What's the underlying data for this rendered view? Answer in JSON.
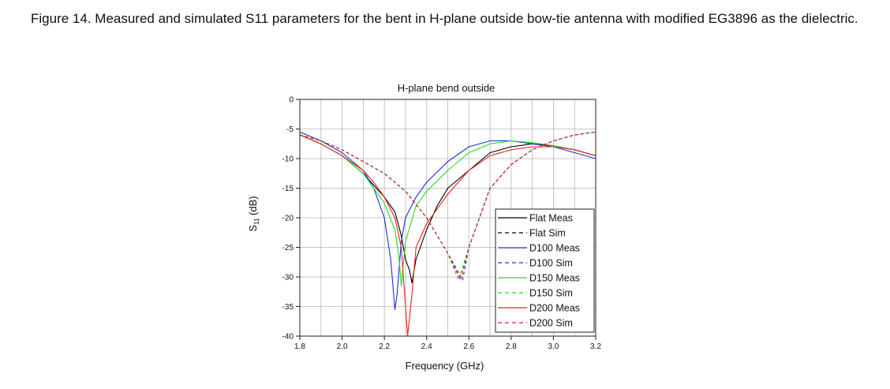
{
  "caption": {
    "label": "Figure 14.",
    "text": "Measured and simulated S11   parameters for the bent in H-plane outside bow-tie antenna with modified EG3896 as the dielectric."
  },
  "chart_data": {
    "type": "line",
    "title": "H-plane bend outside",
    "xlabel": "Frequency (GHz)",
    "ylabel": "S11 (dB)",
    "xlim": [
      1.8,
      3.2
    ],
    "ylim": [
      -40,
      0
    ],
    "xticks": [
      "1.8",
      "2.0",
      "2.2",
      "2.4",
      "2.6",
      "2.8",
      "3.0",
      "3.2"
    ],
    "yticks": [
      "0",
      "-5",
      "-10",
      "-15",
      "-20",
      "-25",
      "-30",
      "-35",
      "-40"
    ],
    "grid": true,
    "legend_position": "bottom-right",
    "series": [
      {
        "name": "Flat Meas",
        "color": "#000000",
        "dash": "solid",
        "x": [
          1.8,
          1.9,
          2.0,
          2.1,
          2.15,
          2.2,
          2.25,
          2.28,
          2.3,
          2.32,
          2.33,
          2.35,
          2.4,
          2.45,
          2.5,
          2.6,
          2.7,
          2.8,
          2.9,
          3.0,
          3.1,
          3.2
        ],
        "y": [
          -6,
          -7.5,
          -9.5,
          -12.5,
          -14.5,
          -16.5,
          -19,
          -23,
          -27,
          -29,
          -31,
          -27,
          -22,
          -18,
          -15,
          -12,
          -9,
          -8,
          -7.5,
          -7.8,
          -8.5,
          -9.5
        ]
      },
      {
        "name": "Flat Sim",
        "color": "#000000",
        "dash": "dash",
        "x": [
          1.8,
          1.9,
          2.0,
          2.1,
          2.2,
          2.3,
          2.4,
          2.5,
          2.56,
          2.6,
          2.7,
          2.8,
          2.9,
          3.0,
          3.1,
          3.2
        ],
        "y": [
          -6,
          -7,
          -8.5,
          -10.5,
          -12.5,
          -15.5,
          -20,
          -26,
          -30.5,
          -25,
          -15,
          -11,
          -8.5,
          -7,
          -6,
          -5.5
        ]
      },
      {
        "name": "D100 Meas",
        "color": "#1f2fd6",
        "dash": "solid",
        "x": [
          1.8,
          1.9,
          2.0,
          2.1,
          2.15,
          2.2,
          2.23,
          2.25,
          2.26,
          2.28,
          2.3,
          2.35,
          2.4,
          2.5,
          2.6,
          2.7,
          2.8,
          2.9,
          3.0,
          3.1,
          3.2
        ],
        "y": [
          -5.5,
          -7,
          -9,
          -12,
          -15,
          -20,
          -27,
          -35.5,
          -33,
          -24,
          -20,
          -16.5,
          -14,
          -10.5,
          -8,
          -7,
          -7,
          -7.5,
          -8,
          -9,
          -10
        ]
      },
      {
        "name": "D100 Sim",
        "color": "#1f2fd6",
        "dash": "dash",
        "x": [
          1.8,
          1.9,
          2.0,
          2.1,
          2.2,
          2.3,
          2.4,
          2.5,
          2.57,
          2.6,
          2.7,
          2.8,
          2.9,
          3.0,
          3.1,
          3.2
        ],
        "y": [
          -6,
          -7,
          -8.5,
          -10.5,
          -12.5,
          -15.5,
          -20,
          -26,
          -30.5,
          -25,
          -15,
          -11,
          -8.5,
          -7,
          -6,
          -5.5
        ]
      },
      {
        "name": "D150 Meas",
        "color": "#22dd22",
        "dash": "solid",
        "x": [
          1.8,
          1.9,
          2.0,
          2.1,
          2.15,
          2.2,
          2.25,
          2.27,
          2.28,
          2.3,
          2.35,
          2.4,
          2.5,
          2.6,
          2.7,
          2.8,
          2.9,
          3.0,
          3.1,
          3.2
        ],
        "y": [
          -6,
          -7.5,
          -9.5,
          -12.5,
          -15,
          -17.5,
          -22,
          -27,
          -31.5,
          -24,
          -18,
          -15.5,
          -12,
          -9,
          -7.5,
          -7,
          -7.3,
          -7.8,
          -8.5,
          -9.5
        ]
      },
      {
        "name": "D150 Sim",
        "color": "#22dd22",
        "dash": "dash",
        "x": [
          1.8,
          1.9,
          2.0,
          2.1,
          2.2,
          2.3,
          2.4,
          2.5,
          2.55,
          2.6,
          2.7,
          2.8,
          2.9,
          3.0,
          3.1,
          3.2
        ],
        "y": [
          -6,
          -7,
          -8.5,
          -10.5,
          -12.5,
          -15.5,
          -20,
          -26,
          -30.5,
          -25,
          -15,
          -11,
          -8.5,
          -7,
          -6,
          -5.5
        ]
      },
      {
        "name": "D200 Meas",
        "color": "#ee2222",
        "dash": "solid",
        "x": [
          1.8,
          1.9,
          2.0,
          2.1,
          2.15,
          2.2,
          2.25,
          2.28,
          2.3,
          2.31,
          2.33,
          2.35,
          2.4,
          2.45,
          2.5,
          2.6,
          2.7,
          2.8,
          2.9,
          3.0,
          3.1,
          3.2
        ],
        "y": [
          -6,
          -7.5,
          -9.5,
          -12,
          -14,
          -16.5,
          -20,
          -25,
          -35,
          -40,
          -33,
          -25,
          -21,
          -18.5,
          -16,
          -12,
          -9.5,
          -8.5,
          -8,
          -8,
          -8.5,
          -9.5
        ]
      },
      {
        "name": "D200 Sim",
        "color": "#ee2222",
        "dash": "dash",
        "x": [
          1.8,
          1.9,
          2.0,
          2.1,
          2.2,
          2.3,
          2.4,
          2.5,
          2.56,
          2.6,
          2.7,
          2.8,
          2.9,
          3.0,
          3.1,
          3.2
        ],
        "y": [
          -6,
          -7,
          -8.5,
          -10.5,
          -12.5,
          -15.5,
          -20,
          -26,
          -30.5,
          -25,
          -15,
          -11,
          -8.5,
          -7,
          -6,
          -5.5
        ]
      }
    ]
  }
}
